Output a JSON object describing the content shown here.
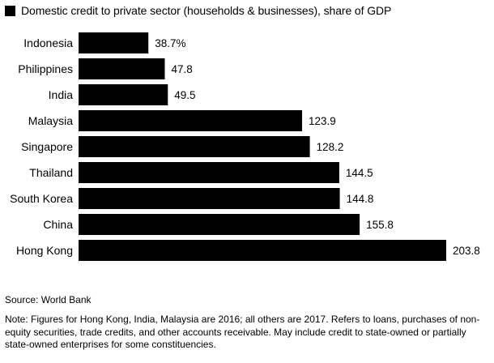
{
  "legend": {
    "label": "Domestic credit to private sector (households & businesses), share of GDP",
    "color": "#000000"
  },
  "chart_data": {
    "type": "bar",
    "orientation": "horizontal",
    "categories": [
      "Indonesia",
      "Philippines",
      "India",
      "Malaysia",
      "Singapore",
      "Thailand",
      "South Korea",
      "China",
      "Hong Kong"
    ],
    "values": [
      38.7,
      47.8,
      49.5,
      123.9,
      128.2,
      144.5,
      144.8,
      155.8,
      203.8
    ],
    "value_labels": [
      "38.7%",
      "47.8",
      "49.5",
      "123.9",
      "128.2",
      "144.5",
      "144.8",
      "155.8",
      "203.8"
    ],
    "series": [
      {
        "name": "Domestic credit to private sector (households & businesses), share of GDP",
        "values": [
          38.7,
          47.8,
          49.5,
          123.9,
          128.2,
          144.5,
          144.8,
          155.8,
          203.8
        ]
      }
    ],
    "xlim": [
      0,
      203.8
    ],
    "bar_color": "#000000",
    "grid": false,
    "legend_position": "top-left"
  },
  "footer": {
    "source": "Source: World Bank",
    "note": "Note: Figures for Hong Kong, India, Malaysia are 2016; all others are 2017. Refers to loans, purchases of non-equity securities, trade credits, and other accounts receivable. May include credit to state-owned or partially state-owned enterprises for some constituencies."
  }
}
